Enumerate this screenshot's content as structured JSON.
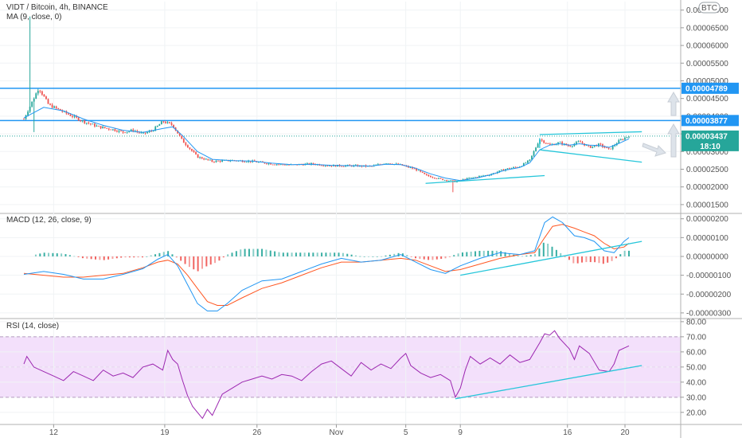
{
  "chart_data": [
    {
      "type": "candlestick",
      "title": "VIDT / Bitcoin, 4h, BINANCE",
      "indicator": "MA (9, close, 0)",
      "currency_button": "BTC",
      "yticks": [
        "0.00007000",
        "0.00006500",
        "0.00006000",
        "0.00005500",
        "0.00005000",
        "0.00004500",
        "0.00004000",
        "0.00003500",
        "0.00003000",
        "0.00002500",
        "0.00002000",
        "0.00001500"
      ],
      "ytick_values": [
        7e-05,
        6.5e-05,
        6e-05,
        5.5e-05,
        5e-05,
        4.5e-05,
        4e-05,
        3.5e-05,
        3e-05,
        2.5e-05,
        2e-05,
        1.5e-05
      ],
      "ylim": [
        1.25e-05,
        7.15e-05
      ],
      "hlines": [
        {
          "value": 4.789e-05,
          "label": "0.00004789",
          "color": "#2196f3"
        },
        {
          "value": 3.877e-05,
          "label": "0.00003877",
          "color": "#2196f3"
        }
      ],
      "last_price": {
        "value": 3.437e-05,
        "label": "0.00003437",
        "countdown": "18:10",
        "color": "#26a69a"
      },
      "colors": {
        "up": "#26a69a",
        "down": "#ef5350",
        "ma": "#2196f3",
        "trend": "#26c6da"
      },
      "close_path": [
        [
          0,
          3.92e-05
        ],
        [
          1.5,
          4.8e-05
        ],
        [
          2.5,
          4.32e-05
        ],
        [
          4.5,
          4.05e-05
        ],
        [
          6,
          3.85e-05
        ],
        [
          7.5,
          3.7e-05
        ],
        [
          9,
          3.62e-05
        ],
        [
          10,
          3.55e-05
        ],
        [
          11,
          3.6e-05
        ],
        [
          12,
          3.5e-05
        ],
        [
          13,
          3.6e-05
        ],
        [
          14,
          3.85e-05
        ],
        [
          15,
          3.75e-05
        ],
        [
          16,
          3.3e-05
        ],
        [
          17.5,
          2.85e-05
        ],
        [
          19,
          2.72e-05
        ],
        [
          21,
          2.75e-05
        ],
        [
          23,
          2.72e-05
        ],
        [
          25,
          2.65e-05
        ],
        [
          27,
          2.62e-05
        ],
        [
          29,
          2.65e-05
        ],
        [
          31,
          2.6e-05
        ],
        [
          33,
          2.6e-05
        ],
        [
          35,
          2.58e-05
        ],
        [
          36.5,
          2.68e-05
        ],
        [
          38,
          2.62e-05
        ],
        [
          39.5,
          2.5e-05
        ],
        [
          40.5,
          2.33e-05
        ],
        [
          42,
          2.22e-05
        ],
        [
          43.5,
          2.15e-05
        ],
        [
          45,
          2.25e-05
        ],
        [
          47,
          2.35e-05
        ],
        [
          48.5,
          2.5e-05
        ],
        [
          50,
          2.58e-05
        ],
        [
          51,
          2.75e-05
        ],
        [
          52,
          3.35e-05
        ],
        [
          53,
          3.18e-05
        ],
        [
          54,
          3.25e-05
        ],
        [
          55,
          3.15e-05
        ],
        [
          56,
          3.28e-05
        ],
        [
          57,
          3.12e-05
        ],
        [
          58,
          3.2e-05
        ],
        [
          59,
          3.05e-05
        ],
        [
          60,
          3.3e-05
        ],
        [
          61,
          3.45e-05
        ]
      ],
      "ma_path": [
        [
          0,
          3.95e-05
        ],
        [
          2,
          4.25e-05
        ],
        [
          4,
          4.15e-05
        ],
        [
          6,
          3.92e-05
        ],
        [
          8,
          3.74e-05
        ],
        [
          10,
          3.6e-05
        ],
        [
          12,
          3.54e-05
        ],
        [
          14,
          3.65e-05
        ],
        [
          15,
          3.7e-05
        ],
        [
          16,
          3.45e-05
        ],
        [
          17.5,
          3e-05
        ],
        [
          19,
          2.78e-05
        ],
        [
          21,
          2.74e-05
        ],
        [
          23,
          2.73e-05
        ],
        [
          25,
          2.67e-05
        ],
        [
          27,
          2.63e-05
        ],
        [
          29,
          2.64e-05
        ],
        [
          31,
          2.61e-05
        ],
        [
          33,
          2.6e-05
        ],
        [
          35,
          2.59e-05
        ],
        [
          36.5,
          2.64e-05
        ],
        [
          38,
          2.63e-05
        ],
        [
          39.5,
          2.53e-05
        ],
        [
          41,
          2.37e-05
        ],
        [
          42.5,
          2.25e-05
        ],
        [
          44,
          2.18e-05
        ],
        [
          45.5,
          2.24e-05
        ],
        [
          47,
          2.34e-05
        ],
        [
          48.5,
          2.47e-05
        ],
        [
          50,
          2.55e-05
        ],
        [
          51,
          2.68e-05
        ],
        [
          52,
          3.05e-05
        ],
        [
          53,
          3.18e-05
        ],
        [
          54,
          3.22e-05
        ],
        [
          55,
          3.18e-05
        ],
        [
          56,
          3.22e-05
        ],
        [
          57,
          3.18e-05
        ],
        [
          58,
          3.17e-05
        ],
        [
          59,
          3.12e-05
        ],
        [
          60,
          3.23e-05
        ],
        [
          61,
          3.36e-05
        ]
      ],
      "trendlines": [
        [
          [
            40.5,
            2.1e-05
          ],
          [
            52.5,
            2.32e-05
          ]
        ],
        [
          [
            52,
            3.48e-05
          ],
          [
            62.3,
            3.56e-05
          ]
        ],
        [
          [
            52,
            3.05e-05
          ],
          [
            62.3,
            2.7e-05
          ]
        ],
        [
          [
            52,
            3.38e-05
          ],
          [
            52,
            3.1e-05
          ]
        ]
      ]
    },
    {
      "type": "line",
      "title": "MACD (12, 26, close, 9)",
      "yticks": [
        "0.00000200",
        "0.00000100",
        "0.00000000",
        "-0.00000100",
        "-0.00000200",
        "-0.00000300"
      ],
      "ytick_values": [
        2e-06,
        1e-06,
        0,
        -1e-06,
        -2e-06,
        -3e-06
      ],
      "ylim": [
        -3.3e-06,
        2.2e-06
      ],
      "macd_path": [
        [
          0,
          -9.5e-07
        ],
        [
          2,
          -8e-07
        ],
        [
          4,
          -9.5e-07
        ],
        [
          6,
          -1.2e-06
        ],
        [
          8,
          -1.2e-06
        ],
        [
          10,
          -9.5e-07
        ],
        [
          12,
          -6.5e-07
        ],
        [
          13.5,
          -1.5e-07
        ],
        [
          14.5,
          1e-07
        ],
        [
          15.5,
          -5e-07
        ],
        [
          16.5,
          -1.5e-06
        ],
        [
          17.5,
          -2.5e-06
        ],
        [
          18.5,
          -2.9e-06
        ],
        [
          19.5,
          -2.9e-06
        ],
        [
          20.5,
          -2.5e-06
        ],
        [
          22,
          -1.8e-06
        ],
        [
          24,
          -1.3e-06
        ],
        [
          26,
          -1.2e-06
        ],
        [
          28,
          -8e-07
        ],
        [
          30,
          -4e-07
        ],
        [
          32,
          -1e-07
        ],
        [
          34,
          -3e-07
        ],
        [
          36,
          -2e-07
        ],
        [
          38,
          1e-07
        ],
        [
          39.5,
          -3e-07
        ],
        [
          41,
          -7e-07
        ],
        [
          42.5,
          -9e-07
        ],
        [
          44,
          -5e-07
        ],
        [
          46,
          -1e-07
        ],
        [
          48,
          2e-07
        ],
        [
          50,
          1e-07
        ],
        [
          51.5,
          3e-07
        ],
        [
          52.5,
          1.8e-06
        ],
        [
          53.3,
          2.1e-06
        ],
        [
          54.3,
          1.8e-06
        ],
        [
          55.5,
          1.1e-06
        ],
        [
          56.5,
          1e-06
        ],
        [
          57.5,
          8e-07
        ],
        [
          58.5,
          3e-07
        ],
        [
          59.5,
          2e-07
        ],
        [
          60.5,
          8e-07
        ],
        [
          61,
          1e-06
        ]
      ],
      "signal_path": [
        [
          0,
          -9e-07
        ],
        [
          2,
          -1e-06
        ],
        [
          4,
          -1.1e-06
        ],
        [
          6,
          -1.1e-06
        ],
        [
          8,
          -1e-06
        ],
        [
          10,
          -9e-07
        ],
        [
          12,
          -6e-07
        ],
        [
          13.5,
          -3e-07
        ],
        [
          14.5,
          -2e-07
        ],
        [
          15.5,
          -4e-07
        ],
        [
          16.5,
          -1e-06
        ],
        [
          17.5,
          -1.7e-06
        ],
        [
          18.5,
          -2.4e-06
        ],
        [
          19.5,
          -2.6e-06
        ],
        [
          20.5,
          -2.6e-06
        ],
        [
          22,
          -2.2e-06
        ],
        [
          24,
          -1.7e-06
        ],
        [
          26,
          -1.4e-06
        ],
        [
          28,
          -1e-06
        ],
        [
          30,
          -6e-07
        ],
        [
          32,
          -3e-07
        ],
        [
          34,
          -3e-07
        ],
        [
          36,
          -2e-07
        ],
        [
          38,
          -1e-07
        ],
        [
          39.5,
          -2e-07
        ],
        [
          41,
          -5e-07
        ],
        [
          42.5,
          -8e-07
        ],
        [
          44,
          -7e-07
        ],
        [
          46,
          -4e-07
        ],
        [
          48,
          -1e-07
        ],
        [
          50,
          1e-07
        ],
        [
          51.5,
          2e-07
        ],
        [
          52.5,
          1e-06
        ],
        [
          53.3,
          1.6e-06
        ],
        [
          54.3,
          1.7e-06
        ],
        [
          55.5,
          1.5e-06
        ],
        [
          56.5,
          1.3e-06
        ],
        [
          57.5,
          1.1e-06
        ],
        [
          58.5,
          7e-07
        ],
        [
          59.5,
          4e-07
        ],
        [
          60.5,
          5e-07
        ],
        [
          61,
          7e-07
        ]
      ],
      "colors": {
        "macd": "#2196f3",
        "signal": "#ff5722",
        "hist_up": "#26a69a",
        "hist_down": "#ef5350",
        "trend": "#26c6da"
      },
      "trendlines": [
        [
          [
            44,
            -1e-06
          ],
          [
            62.3,
            8e-07
          ]
        ]
      ]
    },
    {
      "type": "line",
      "title": "RSI (14, close)",
      "yticks": [
        "80.00",
        "70.00",
        "60.00",
        "50.00",
        "40.00",
        "30.00",
        "20.00"
      ],
      "ytick_values": [
        80,
        70,
        60,
        50,
        40,
        30,
        20
      ],
      "ylim": [
        12,
        81
      ],
      "band": [
        30,
        70
      ],
      "colors": {
        "line": "#9c27b0",
        "band": "#f3e0fb",
        "trend": "#26c6da"
      },
      "rsi_path": [
        [
          0,
          52
        ],
        [
          0.3,
          57
        ],
        [
          1,
          50
        ],
        [
          2,
          47
        ],
        [
          3,
          44
        ],
        [
          4,
          41
        ],
        [
          5,
          47
        ],
        [
          6,
          44
        ],
        [
          7,
          41
        ],
        [
          8,
          48
        ],
        [
          9,
          44
        ],
        [
          10,
          46
        ],
        [
          11,
          43
        ],
        [
          12,
          50
        ],
        [
          13,
          52
        ],
        [
          14,
          48
        ],
        [
          14.5,
          61
        ],
        [
          15,
          55
        ],
        [
          15.5,
          52
        ],
        [
          16,
          41
        ],
        [
          16.5,
          31
        ],
        [
          17,
          24
        ],
        [
          17.5,
          20
        ],
        [
          18,
          16
        ],
        [
          18.5,
          22
        ],
        [
          19,
          18
        ],
        [
          20,
          32
        ],
        [
          21,
          36
        ],
        [
          22,
          40
        ],
        [
          23,
          42
        ],
        [
          24,
          44
        ],
        [
          25,
          42
        ],
        [
          26,
          45
        ],
        [
          27,
          44
        ],
        [
          28,
          41
        ],
        [
          29,
          47
        ],
        [
          30,
          52
        ],
        [
          31,
          54
        ],
        [
          32,
          49
        ],
        [
          33,
          44
        ],
        [
          34,
          53
        ],
        [
          35,
          48
        ],
        [
          36,
          52
        ],
        [
          37,
          49
        ],
        [
          38,
          56
        ],
        [
          38.5,
          59
        ],
        [
          39,
          51
        ],
        [
          40,
          46
        ],
        [
          41,
          43
        ],
        [
          42,
          45
        ],
        [
          43,
          41
        ],
        [
          43.5,
          30
        ],
        [
          44,
          36
        ],
        [
          44.5,
          48
        ],
        [
          45,
          57
        ],
        [
          46,
          52
        ],
        [
          47,
          56
        ],
        [
          48,
          52
        ],
        [
          49,
          58
        ],
        [
          50,
          53
        ],
        [
          51,
          55
        ],
        [
          52,
          66
        ],
        [
          52.5,
          72
        ],
        [
          53,
          71
        ],
        [
          53.5,
          74
        ],
        [
          54,
          69
        ],
        [
          55,
          62
        ],
        [
          55.5,
          55
        ],
        [
          56,
          64
        ],
        [
          57,
          59
        ],
        [
          58,
          48
        ],
        [
          59,
          47
        ],
        [
          59.5,
          52
        ],
        [
          60,
          61
        ],
        [
          61,
          64
        ]
      ],
      "trendlines": [
        [
          [
            43.5,
            29
          ],
          [
            62.3,
            51
          ]
        ]
      ]
    }
  ],
  "xaxis": {
    "labels": [
      "12",
      "19",
      "26",
      "Nov",
      "5",
      "9",
      "16",
      "20"
    ],
    "positions": [
      3,
      14.2,
      23.5,
      31.5,
      38.5,
      44,
      54.8,
      60.6
    ]
  }
}
